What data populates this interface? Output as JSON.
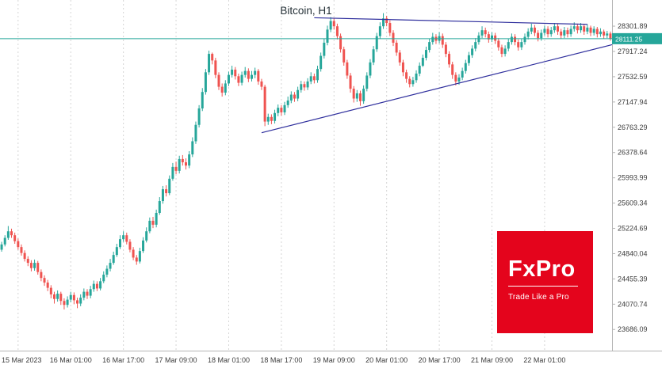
{
  "header": {
    "title": "Bitcoin, H1"
  },
  "colors": {
    "bull": "#26a69a",
    "bear": "#ef5350",
    "trend_line": "#2f2f9d",
    "current_price_line": "#26a69a",
    "badge_bg": "#26a69a",
    "badge_text": "#ffffff",
    "grid": "#d4d4d4",
    "axis_line": "#b5b5b5",
    "axis_text": "#3c3c3c",
    "logo_bg": "#e4041c"
  },
  "price_scale": {
    "labels": [
      "28301.89",
      "27917.24",
      "27532.59",
      "27147.94",
      "26763.29",
      "26378.64",
      "25993.99",
      "25609.34",
      "25224.69",
      "24840.04",
      "24455.39",
      "24070.74",
      "23686.09"
    ],
    "current_price_label": "28111.25"
  },
  "time_scale": {
    "labels": [
      {
        "bar": 5,
        "label": "15 Mar 2023"
      },
      {
        "bar": 21,
        "label": "16 Mar 01:00"
      },
      {
        "bar": 37,
        "label": "16 Mar 17:00"
      },
      {
        "bar": 53,
        "label": "17 Mar 09:00"
      },
      {
        "bar": 69,
        "label": "18 Mar 01:00"
      },
      {
        "bar": 85,
        "label": "18 Mar 17:00"
      },
      {
        "bar": 101,
        "label": "19 Mar 09:00"
      },
      {
        "bar": 117,
        "label": "20 Mar 01:00"
      },
      {
        "bar": 133,
        "label": "20 Mar 17:00"
      },
      {
        "bar": 149,
        "label": "21 Mar 09:00"
      },
      {
        "bar": 165,
        "label": "22 Mar 01:00"
      }
    ]
  },
  "logo": {
    "name": "FxPro",
    "tagline": "Trade Like a Pro"
  },
  "chart_data": {
    "type": "candlestick",
    "title": "Bitcoin, H1",
    "symbol": "Bitcoin",
    "timeframe": "H1",
    "bars": 186,
    "price_range": [
      23400,
      28700
    ],
    "current_price": 28111.25,
    "candle_format": [
      "open",
      "high",
      "low",
      "close"
    ],
    "candles": [
      [
        24900,
        25020,
        24870,
        24980
      ],
      [
        24980,
        25120,
        24950,
        25080
      ],
      [
        25080,
        25260,
        25050,
        25180
      ],
      [
        25180,
        25220,
        25080,
        25120
      ],
      [
        25120,
        25160,
        24990,
        25030
      ],
      [
        25030,
        25070,
        24900,
        24940
      ],
      [
        24940,
        24980,
        24810,
        24850
      ],
      [
        24850,
        24890,
        24720,
        24760
      ],
      [
        24760,
        24800,
        24650,
        24700
      ],
      [
        24700,
        24740,
        24570,
        24620
      ],
      [
        24620,
        24750,
        24580,
        24700
      ],
      [
        24700,
        24730,
        24520,
        24560
      ],
      [
        24560,
        24600,
        24420,
        24470
      ],
      [
        24470,
        24510,
        24350,
        24400
      ],
      [
        24400,
        24440,
        24270,
        24320
      ],
      [
        24320,
        24360,
        24160,
        24220
      ],
      [
        24220,
        24260,
        24080,
        24150
      ],
      [
        24150,
        24280,
        24110,
        24230
      ],
      [
        24230,
        24260,
        24060,
        24120
      ],
      [
        24120,
        24160,
        23990,
        24060
      ],
      [
        24060,
        24190,
        24020,
        24140
      ],
      [
        24140,
        24260,
        24100,
        24210
      ],
      [
        24210,
        24250,
        24070,
        24130
      ],
      [
        24130,
        24170,
        24010,
        24080
      ],
      [
        24080,
        24220,
        24040,
        24170
      ],
      [
        24170,
        24310,
        24130,
        24260
      ],
      [
        24260,
        24300,
        24150,
        24200
      ],
      [
        24200,
        24350,
        24160,
        24300
      ],
      [
        24300,
        24430,
        24260,
        24380
      ],
      [
        24380,
        24420,
        24270,
        24310
      ],
      [
        24310,
        24470,
        24280,
        24420
      ],
      [
        24420,
        24570,
        24390,
        24520
      ],
      [
        24520,
        24660,
        24480,
        24610
      ],
      [
        24610,
        24760,
        24570,
        24700
      ],
      [
        24700,
        24870,
        24670,
        24820
      ],
      [
        24820,
        24990,
        24790,
        24940
      ],
      [
        24940,
        25120,
        24910,
        25060
      ],
      [
        25060,
        25180,
        25020,
        25120
      ],
      [
        25120,
        25160,
        24980,
        25020
      ],
      [
        25020,
        25060,
        24860,
        24900
      ],
      [
        24900,
        24940,
        24740,
        24780
      ],
      [
        24780,
        24820,
        24670,
        24720
      ],
      [
        24720,
        24930,
        24690,
        24880
      ],
      [
        24880,
        25090,
        24850,
        25040
      ],
      [
        25040,
        25240,
        25010,
        25180
      ],
      [
        25180,
        25390,
        25150,
        25340
      ],
      [
        25340,
        25400,
        25230,
        25280
      ],
      [
        25280,
        25510,
        25240,
        25460
      ],
      [
        25460,
        25700,
        25430,
        25640
      ],
      [
        25640,
        25870,
        25600,
        25820
      ],
      [
        25820,
        25880,
        25710,
        25760
      ],
      [
        25760,
        26030,
        25730,
        25980
      ],
      [
        25980,
        26220,
        25950,
        26160
      ],
      [
        26160,
        26240,
        26050,
        26100
      ],
      [
        26100,
        26330,
        26060,
        26280
      ],
      [
        26280,
        26340,
        26180,
        26230
      ],
      [
        26230,
        26290,
        26120,
        26180
      ],
      [
        26180,
        26400,
        26140,
        26350
      ],
      [
        26350,
        26610,
        26310,
        26550
      ],
      [
        26550,
        26850,
        26510,
        26800
      ],
      [
        26800,
        27100,
        26760,
        27050
      ],
      [
        27050,
        27360,
        27010,
        27300
      ],
      [
        27300,
        27650,
        27260,
        27600
      ],
      [
        27600,
        27930,
        27560,
        27880
      ],
      [
        27880,
        27900,
        27720,
        27780
      ],
      [
        27780,
        27820,
        27510,
        27560
      ],
      [
        27560,
        27600,
        27330,
        27380
      ],
      [
        27380,
        27430,
        27230,
        27290
      ],
      [
        27290,
        27480,
        27250,
        27430
      ],
      [
        27430,
        27610,
        27390,
        27560
      ],
      [
        27560,
        27700,
        27520,
        27640
      ],
      [
        27640,
        27680,
        27490,
        27540
      ],
      [
        27540,
        27580,
        27390,
        27440
      ],
      [
        27440,
        27610,
        27400,
        27560
      ],
      [
        27560,
        27680,
        27520,
        27620
      ],
      [
        27620,
        27660,
        27450,
        27500
      ],
      [
        27500,
        27620,
        27460,
        27560
      ],
      [
        27560,
        27670,
        27510,
        27620
      ],
      [
        27620,
        27650,
        27410,
        27460
      ],
      [
        27460,
        27500,
        27330,
        27380
      ],
      [
        27380,
        27410,
        26780,
        26850
      ],
      [
        26850,
        26970,
        26800,
        26920
      ],
      [
        26920,
        26960,
        26810,
        26860
      ],
      [
        26860,
        27030,
        26820,
        26980
      ],
      [
        26980,
        27110,
        26930,
        27060
      ],
      [
        27060,
        27100,
        26940,
        26990
      ],
      [
        26990,
        27150,
        26950,
        27100
      ],
      [
        27100,
        27230,
        27060,
        27170
      ],
      [
        27170,
        27310,
        27130,
        27260
      ],
      [
        27260,
        27300,
        27150,
        27200
      ],
      [
        27200,
        27380,
        27160,
        27330
      ],
      [
        27330,
        27470,
        27290,
        27420
      ],
      [
        27420,
        27460,
        27320,
        27370
      ],
      [
        27370,
        27510,
        27330,
        27460
      ],
      [
        27460,
        27600,
        27420,
        27540
      ],
      [
        27540,
        27580,
        27430,
        27480
      ],
      [
        27480,
        27700,
        27440,
        27650
      ],
      [
        27650,
        27900,
        27610,
        27850
      ],
      [
        27850,
        28110,
        27810,
        28050
      ],
      [
        28050,
        28310,
        28010,
        28250
      ],
      [
        28250,
        28440,
        28210,
        28380
      ],
      [
        28380,
        28420,
        28250,
        28300
      ],
      [
        28300,
        28340,
        28100,
        28150
      ],
      [
        28150,
        28190,
        27900,
        27950
      ],
      [
        27950,
        27990,
        27700,
        27750
      ],
      [
        27750,
        27790,
        27500,
        27550
      ],
      [
        27550,
        27590,
        27290,
        27350
      ],
      [
        27350,
        27390,
        27140,
        27200
      ],
      [
        27200,
        27330,
        27150,
        27280
      ],
      [
        27280,
        27320,
        27090,
        27160
      ],
      [
        27160,
        27400,
        27120,
        27350
      ],
      [
        27350,
        27600,
        27310,
        27550
      ],
      [
        27550,
        27800,
        27510,
        27750
      ],
      [
        27750,
        28000,
        27710,
        27950
      ],
      [
        27950,
        28200,
        27910,
        28150
      ],
      [
        28150,
        28360,
        28110,
        28300
      ],
      [
        28300,
        28500,
        28260,
        28420
      ],
      [
        28420,
        28460,
        28300,
        28350
      ],
      [
        28350,
        28390,
        28150,
        28200
      ],
      [
        28200,
        28240,
        28000,
        28050
      ],
      [
        28050,
        28090,
        27850,
        27900
      ],
      [
        27900,
        27940,
        27700,
        27750
      ],
      [
        27750,
        27790,
        27540,
        27600
      ],
      [
        27600,
        27640,
        27440,
        27500
      ],
      [
        27500,
        27540,
        27370,
        27420
      ],
      [
        27420,
        27530,
        27380,
        27480
      ],
      [
        27480,
        27630,
        27440,
        27580
      ],
      [
        27580,
        27750,
        27540,
        27700
      ],
      [
        27700,
        27870,
        27680,
        27820
      ],
      [
        27820,
        27990,
        27780,
        27940
      ],
      [
        27940,
        28110,
        27900,
        28060
      ],
      [
        28060,
        28200,
        28020,
        28140
      ],
      [
        28140,
        28180,
        28030,
        28080
      ],
      [
        28080,
        28210,
        28040,
        28150
      ],
      [
        28150,
        28190,
        27970,
        28020
      ],
      [
        28020,
        28060,
        27830,
        27880
      ],
      [
        27880,
        27920,
        27670,
        27720
      ],
      [
        27720,
        27760,
        27500,
        27560
      ],
      [
        27560,
        27600,
        27400,
        27460
      ],
      [
        27460,
        27570,
        27410,
        27520
      ],
      [
        27520,
        27670,
        27480,
        27620
      ],
      [
        27620,
        27790,
        27580,
        27740
      ],
      [
        27740,
        27910,
        27700,
        27860
      ],
      [
        27860,
        28010,
        27820,
        27960
      ],
      [
        27960,
        28120,
        27920,
        28060
      ],
      [
        28060,
        28210,
        28020,
        28160
      ],
      [
        28160,
        28300,
        28120,
        28240
      ],
      [
        28240,
        28280,
        28130,
        28180
      ],
      [
        28180,
        28220,
        28050,
        28100
      ],
      [
        28100,
        28210,
        28060,
        28160
      ],
      [
        28160,
        28200,
        28030,
        28080
      ],
      [
        28080,
        28120,
        27930,
        27980
      ],
      [
        27980,
        28020,
        27830,
        27880
      ],
      [
        27880,
        28010,
        27840,
        27960
      ],
      [
        27960,
        28110,
        27920,
        28060
      ],
      [
        28060,
        28190,
        28020,
        28140
      ],
      [
        28140,
        28180,
        28010,
        28060
      ],
      [
        28060,
        28100,
        27930,
        27980
      ],
      [
        27980,
        28110,
        27940,
        28060
      ],
      [
        28060,
        28190,
        28020,
        28140
      ],
      [
        28140,
        28270,
        28100,
        28220
      ],
      [
        28220,
        28340,
        28180,
        28280
      ],
      [
        28280,
        28320,
        28150,
        28200
      ],
      [
        28200,
        28240,
        28070,
        28120
      ],
      [
        28120,
        28250,
        28080,
        28200
      ],
      [
        28200,
        28310,
        28160,
        28260
      ],
      [
        28260,
        28300,
        28130,
        28180
      ],
      [
        28180,
        28290,
        28140,
        28240
      ],
      [
        28240,
        28350,
        28200,
        28300
      ],
      [
        28300,
        28340,
        28170,
        28220
      ],
      [
        28220,
        28260,
        28110,
        28160
      ],
      [
        28160,
        28290,
        28120,
        28240
      ],
      [
        28240,
        28280,
        28130,
        28180
      ],
      [
        28180,
        28310,
        28140,
        28260
      ],
      [
        28260,
        28360,
        28220,
        28300
      ],
      [
        28300,
        28340,
        28190,
        28240
      ],
      [
        28240,
        28350,
        28200,
        28300
      ],
      [
        28300,
        28330,
        28170,
        28220
      ],
      [
        28220,
        28330,
        28180,
        28280
      ],
      [
        28280,
        28310,
        28150,
        28200
      ],
      [
        28200,
        28300,
        28160,
        28260
      ],
      [
        28260,
        28290,
        28130,
        28180
      ],
      [
        28180,
        28270,
        28140,
        28220
      ],
      [
        28220,
        28250,
        28110,
        28160
      ],
      [
        28160,
        28230,
        28120,
        28190
      ],
      [
        28190,
        28220,
        28080,
        28111
      ]
    ],
    "trend_lines": [
      {
        "name": "resistance",
        "from_bar": 95,
        "from_price": 28430,
        "to_bar": 178,
        "to_price": 28330
      },
      {
        "name": "support",
        "from_bar": 79,
        "from_price": 26680,
        "to_bar": 186,
        "to_price": 28020
      }
    ],
    "legend_position": "none",
    "grid": "vertical-dashed"
  }
}
